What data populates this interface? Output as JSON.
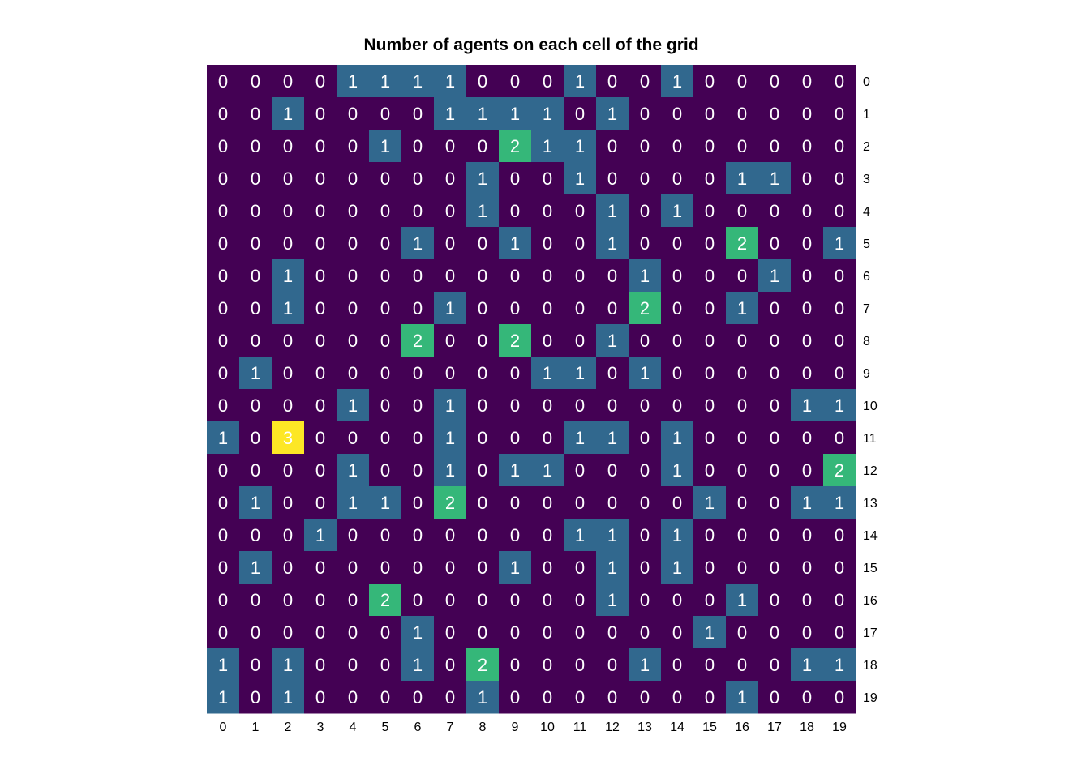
{
  "chart_data": {
    "type": "heatmap",
    "title": "Number of agents on each cell of the grid",
    "xlabel": "",
    "ylabel": "",
    "x_ticks": [
      "0",
      "1",
      "2",
      "3",
      "4",
      "5",
      "6",
      "7",
      "8",
      "9",
      "10",
      "11",
      "12",
      "13",
      "14",
      "15",
      "16",
      "17",
      "18",
      "19"
    ],
    "y_ticks": [
      "0",
      "1",
      "2",
      "3",
      "4",
      "5",
      "6",
      "7",
      "8",
      "9",
      "10",
      "11",
      "12",
      "13",
      "14",
      "15",
      "16",
      "17",
      "18",
      "19"
    ],
    "y_axis_position": "right",
    "colormap": "viridis",
    "value_range": [
      0,
      3
    ],
    "colors": {
      "0": "#440154",
      "1": "#31688e",
      "2": "#35b779",
      "3": "#fde725"
    },
    "annotations": true,
    "values": [
      [
        0,
        0,
        0,
        0,
        1,
        1,
        1,
        1,
        0,
        0,
        0,
        1,
        0,
        0,
        1,
        0,
        0,
        0,
        0,
        0
      ],
      [
        0,
        0,
        1,
        0,
        0,
        0,
        0,
        1,
        1,
        1,
        1,
        0,
        1,
        0,
        0,
        0,
        0,
        0,
        0,
        0
      ],
      [
        0,
        0,
        0,
        0,
        0,
        1,
        0,
        0,
        0,
        2,
        1,
        1,
        0,
        0,
        0,
        0,
        0,
        0,
        0,
        0
      ],
      [
        0,
        0,
        0,
        0,
        0,
        0,
        0,
        0,
        1,
        0,
        0,
        1,
        0,
        0,
        0,
        0,
        1,
        1,
        0,
        0
      ],
      [
        0,
        0,
        0,
        0,
        0,
        0,
        0,
        0,
        1,
        0,
        0,
        0,
        1,
        0,
        1,
        0,
        0,
        0,
        0,
        0
      ],
      [
        0,
        0,
        0,
        0,
        0,
        0,
        1,
        0,
        0,
        1,
        0,
        0,
        1,
        0,
        0,
        0,
        2,
        0,
        0,
        1
      ],
      [
        0,
        0,
        1,
        0,
        0,
        0,
        0,
        0,
        0,
        0,
        0,
        0,
        0,
        1,
        0,
        0,
        0,
        1,
        0,
        0
      ],
      [
        0,
        0,
        1,
        0,
        0,
        0,
        0,
        1,
        0,
        0,
        0,
        0,
        0,
        2,
        0,
        0,
        1,
        0,
        0,
        0
      ],
      [
        0,
        0,
        0,
        0,
        0,
        0,
        2,
        0,
        0,
        2,
        0,
        0,
        1,
        0,
        0,
        0,
        0,
        0,
        0,
        0
      ],
      [
        0,
        1,
        0,
        0,
        0,
        0,
        0,
        0,
        0,
        0,
        1,
        1,
        0,
        1,
        0,
        0,
        0,
        0,
        0,
        0
      ],
      [
        0,
        0,
        0,
        0,
        1,
        0,
        0,
        1,
        0,
        0,
        0,
        0,
        0,
        0,
        0,
        0,
        0,
        0,
        1,
        1
      ],
      [
        1,
        0,
        3,
        0,
        0,
        0,
        0,
        1,
        0,
        0,
        0,
        1,
        1,
        0,
        1,
        0,
        0,
        0,
        0,
        0
      ],
      [
        0,
        0,
        0,
        0,
        1,
        0,
        0,
        1,
        0,
        1,
        1,
        0,
        0,
        0,
        1,
        0,
        0,
        0,
        0,
        2
      ],
      [
        0,
        1,
        0,
        0,
        1,
        1,
        0,
        2,
        0,
        0,
        0,
        0,
        0,
        0,
        0,
        1,
        0,
        0,
        1,
        1
      ],
      [
        0,
        0,
        0,
        1,
        0,
        0,
        0,
        0,
        0,
        0,
        0,
        1,
        1,
        0,
        1,
        0,
        0,
        0,
        0,
        0
      ],
      [
        0,
        1,
        0,
        0,
        0,
        0,
        0,
        0,
        0,
        1,
        0,
        0,
        1,
        0,
        1,
        0,
        0,
        0,
        0,
        0
      ],
      [
        0,
        0,
        0,
        0,
        0,
        2,
        0,
        0,
        0,
        0,
        0,
        0,
        1,
        0,
        0,
        0,
        1,
        0,
        0,
        0
      ],
      [
        0,
        0,
        0,
        0,
        0,
        0,
        1,
        0,
        0,
        0,
        0,
        0,
        0,
        0,
        0,
        1,
        0,
        0,
        0,
        0
      ],
      [
        1,
        0,
        1,
        0,
        0,
        0,
        1,
        0,
        2,
        0,
        0,
        0,
        0,
        1,
        0,
        0,
        0,
        0,
        1,
        1
      ],
      [
        1,
        0,
        1,
        0,
        0,
        0,
        0,
        0,
        1,
        0,
        0,
        0,
        0,
        0,
        0,
        0,
        1,
        0,
        0,
        0
      ]
    ]
  }
}
